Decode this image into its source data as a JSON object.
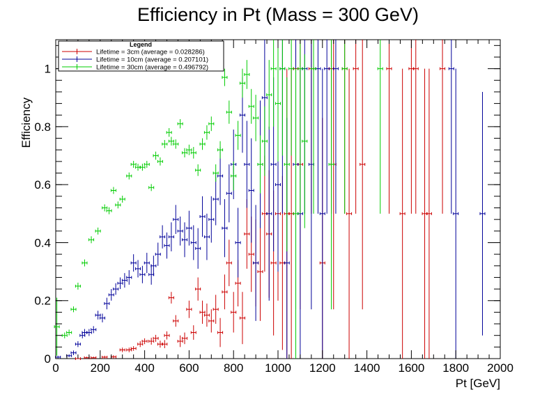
{
  "chart_data": {
    "type": "scatter",
    "title": "Efficiency in Pt (Mass = 300 GeV)",
    "xlabel": "Pt [GeV]",
    "ylabel": "Efficiency",
    "xlim": [
      0,
      2000
    ],
    "ylim": [
      0,
      1.1
    ],
    "x_ticks": [
      0,
      200,
      400,
      600,
      800,
      1000,
      1200,
      1400,
      1600,
      1800,
      2000
    ],
    "y_ticks": [
      0,
      0.2,
      0.4,
      0.6,
      0.8,
      1
    ],
    "grid": false,
    "legend": {
      "title": "Legend",
      "placement": "top-left",
      "entries": [
        "Lifetime = 3cm (average = 0.028286)",
        "Lifetime = 10cm (average = 0.207101)",
        "Lifetime = 30cm (average = 0.496792)"
      ]
    },
    "series": [
      {
        "name": "Lifetime = 3cm (average = 0.028286)",
        "color": "#cc0000",
        "points": [
          [
            100,
            0,
            0.005
          ],
          [
            140,
            0.003,
            0.004
          ],
          [
            170,
            0.003,
            0.004
          ],
          [
            220,
            0.005,
            0.005
          ],
          [
            260,
            0.006,
            0.006
          ],
          [
            300,
            0.03,
            0.008
          ],
          [
            330,
            0.03,
            0.008
          ],
          [
            350,
            0.035,
            0.008
          ],
          [
            380,
            0.05,
            0.01
          ],
          [
            400,
            0.06,
            0.01
          ],
          [
            430,
            0.06,
            0.012
          ],
          [
            450,
            0.07,
            0.012
          ],
          [
            470,
            0.05,
            0.012
          ],
          [
            490,
            0.05,
            0.014
          ],
          [
            500,
            0.08,
            0.014
          ],
          [
            520,
            0.21,
            0.02
          ],
          [
            540,
            0.13,
            0.02
          ],
          [
            560,
            0.06,
            0.02
          ],
          [
            580,
            0.07,
            0.02
          ],
          [
            600,
            0.17,
            0.03
          ],
          [
            620,
            0.09,
            0.025
          ],
          [
            640,
            0.24,
            0.04
          ],
          [
            660,
            0.16,
            0.04
          ],
          [
            680,
            0.15,
            0.04
          ],
          [
            700,
            0.13,
            0.04
          ],
          [
            720,
            0.17,
            0.05
          ],
          [
            740,
            0.09,
            0.05
          ],
          [
            760,
            0.23,
            0.06
          ],
          [
            780,
            0.33,
            0.08
          ],
          [
            800,
            0.16,
            0.07
          ],
          [
            820,
            0.26,
            0.08
          ],
          [
            840,
            0.14,
            0.09
          ],
          [
            860,
            0.43,
            0.12
          ],
          [
            880,
            0.36,
            0.13
          ],
          [
            900,
            0.33,
            0.15
          ],
          [
            920,
            0.3,
            0.17
          ],
          [
            940,
            0.5,
            0.2
          ],
          [
            960,
            0.43,
            0.22
          ],
          [
            980,
            0.33,
            0.25
          ],
          [
            1000,
            0.5,
            0.3
          ],
          [
            1020,
            0.33,
            0.3
          ],
          [
            1040,
            0.5,
            0.5
          ],
          [
            1060,
            0.5,
            0.5
          ],
          [
            1080,
            1,
            0.5
          ],
          [
            1100,
            0.67,
            0.5
          ],
          [
            1150,
            1,
            0.5
          ],
          [
            1200,
            0.33,
            0.5
          ],
          [
            1240,
            1,
            0.5
          ],
          [
            1250,
            0.67,
            0.5
          ],
          [
            1300,
            1,
            0.5
          ],
          [
            1320,
            0.5,
            0.5
          ],
          [
            1350,
            1,
            0.5
          ],
          [
            1380,
            0.67,
            0.5
          ],
          [
            1500,
            1,
            0.5
          ],
          [
            1560,
            0.5,
            0.5
          ],
          [
            1600,
            1,
            0.5
          ],
          [
            1620,
            1,
            0.5
          ],
          [
            1660,
            0.5,
            0.5
          ],
          [
            1680,
            0.5,
            0.5
          ],
          [
            1740,
            1,
            0.5
          ]
        ]
      },
      {
        "name": "Lifetime = 10cm (average = 0.207101)",
        "color": "#000099",
        "points": [
          [
            10,
            0.005,
            0.005
          ],
          [
            60,
            0.01,
            0.005
          ],
          [
            80,
            0.02,
            0.008
          ],
          [
            100,
            0.05,
            0.01
          ],
          [
            120,
            0.08,
            0.01
          ],
          [
            130,
            0.09,
            0.012
          ],
          [
            150,
            0.09,
            0.012
          ],
          [
            170,
            0.1,
            0.012
          ],
          [
            190,
            0.15,
            0.015
          ],
          [
            210,
            0.14,
            0.015
          ],
          [
            230,
            0.19,
            0.02
          ],
          [
            250,
            0.22,
            0.02
          ],
          [
            270,
            0.24,
            0.02
          ],
          [
            290,
            0.26,
            0.02
          ],
          [
            310,
            0.27,
            0.025
          ],
          [
            330,
            0.28,
            0.025
          ],
          [
            350,
            0.33,
            0.03
          ],
          [
            370,
            0.31,
            0.03
          ],
          [
            390,
            0.29,
            0.03
          ],
          [
            410,
            0.33,
            0.035
          ],
          [
            430,
            0.29,
            0.035
          ],
          [
            440,
            0.32,
            0.035
          ],
          [
            460,
            0.36,
            0.04
          ],
          [
            480,
            0.42,
            0.04
          ],
          [
            500,
            0.39,
            0.045
          ],
          [
            520,
            0.42,
            0.05
          ],
          [
            540,
            0.48,
            0.05
          ],
          [
            560,
            0.44,
            0.05
          ],
          [
            580,
            0.41,
            0.06
          ],
          [
            600,
            0.45,
            0.06
          ],
          [
            620,
            0.4,
            0.06
          ],
          [
            640,
            0.38,
            0.07
          ],
          [
            660,
            0.49,
            0.07
          ],
          [
            680,
            0.42,
            0.08
          ],
          [
            700,
            0.48,
            0.08
          ],
          [
            720,
            0.55,
            0.09
          ],
          [
            740,
            0.63,
            0.1
          ],
          [
            760,
            0.45,
            0.1
          ],
          [
            780,
            0.57,
            0.1
          ],
          [
            800,
            0.67,
            0.12
          ],
          [
            820,
            0.4,
            0.12
          ],
          [
            840,
            0.84,
            0.13
          ],
          [
            860,
            0.67,
            0.15
          ],
          [
            880,
            0.58,
            0.18
          ],
          [
            900,
            0.33,
            0.2
          ],
          [
            920,
            0.67,
            0.22
          ],
          [
            940,
            0.9,
            0.25
          ],
          [
            960,
            0.5,
            0.3
          ],
          [
            980,
            0.67,
            0.3
          ],
          [
            1000,
            0.6,
            0.3
          ],
          [
            1020,
            1,
            0.5
          ],
          [
            1040,
            0.33,
            0.5
          ],
          [
            1080,
            0.67,
            0.5
          ],
          [
            1100,
            0.5,
            0.5
          ],
          [
            1120,
            1,
            0.5
          ],
          [
            1150,
            0.67,
            0.5
          ],
          [
            1180,
            1,
            0.5
          ],
          [
            1200,
            0.5,
            0.5
          ],
          [
            1220,
            1,
            0.5
          ],
          [
            1260,
            1,
            0.5
          ],
          [
            1780,
            1,
            0.5
          ],
          [
            1800,
            0.5,
            0.5
          ],
          [
            1920,
            0.5,
            0.42
          ]
        ]
      },
      {
        "name": "Lifetime = 30cm (average = 0.496792)",
        "color": "#00cc00",
        "points": [
          [
            5,
            0.11,
            0.1
          ],
          [
            40,
            0.08,
            0.01
          ],
          [
            60,
            0.09,
            0.01
          ],
          [
            80,
            0.17,
            0.01
          ],
          [
            100,
            0.25,
            0.012
          ],
          [
            130,
            0.33,
            0.012
          ],
          [
            160,
            0.41,
            0.012
          ],
          [
            190,
            0.44,
            0.012
          ],
          [
            220,
            0.52,
            0.012
          ],
          [
            240,
            0.51,
            0.012
          ],
          [
            260,
            0.58,
            0.012
          ],
          [
            280,
            0.53,
            0.012
          ],
          [
            300,
            0.55,
            0.012
          ],
          [
            330,
            0.63,
            0.012
          ],
          [
            350,
            0.67,
            0.012
          ],
          [
            370,
            0.66,
            0.012
          ],
          [
            390,
            0.66,
            0.012
          ],
          [
            410,
            0.67,
            0.012
          ],
          [
            430,
            0.59,
            0.012
          ],
          [
            450,
            0.7,
            0.014
          ],
          [
            470,
            0.68,
            0.014
          ],
          [
            490,
            0.74,
            0.014
          ],
          [
            510,
            0.78,
            0.015
          ],
          [
            520,
            0.75,
            0.015
          ],
          [
            540,
            0.74,
            0.016
          ],
          [
            560,
            0.81,
            0.016
          ],
          [
            580,
            0.71,
            0.016
          ],
          [
            600,
            0.72,
            0.018
          ],
          [
            620,
            0.71,
            0.02
          ],
          [
            640,
            0.65,
            0.02
          ],
          [
            660,
            0.74,
            0.02
          ],
          [
            680,
            0.78,
            0.025
          ],
          [
            700,
            0.81,
            0.025
          ],
          [
            720,
            0.64,
            0.03
          ],
          [
            740,
            0.72,
            0.03
          ],
          [
            760,
            0.97,
            0.03
          ],
          [
            780,
            0.85,
            0.04
          ],
          [
            800,
            0.63,
            0.05
          ],
          [
            820,
            0.77,
            0.05
          ],
          [
            840,
            0.95,
            0.05
          ],
          [
            860,
            0.98,
            0.05
          ],
          [
            880,
            0.87,
            0.06
          ],
          [
            900,
            0.83,
            0.08
          ],
          [
            920,
            0.67,
            0.1
          ],
          [
            940,
            0.75,
            0.12
          ],
          [
            960,
            0.91,
            0.12
          ],
          [
            980,
            1,
            0.2
          ],
          [
            1000,
            0.88,
            0.2
          ],
          [
            1020,
            1,
            0.3
          ],
          [
            1040,
            0.67,
            0.3
          ],
          [
            1060,
            1,
            0.3
          ],
          [
            1080,
            0.5,
            0.5
          ],
          [
            1100,
            1,
            0.5
          ],
          [
            1120,
            0.75,
            0.3
          ],
          [
            1160,
            1,
            0.5
          ],
          [
            1240,
            0.67,
            0.5
          ],
          [
            1300,
            1,
            0.5
          ],
          [
            1460,
            1,
            0.5
          ]
        ]
      }
    ]
  }
}
